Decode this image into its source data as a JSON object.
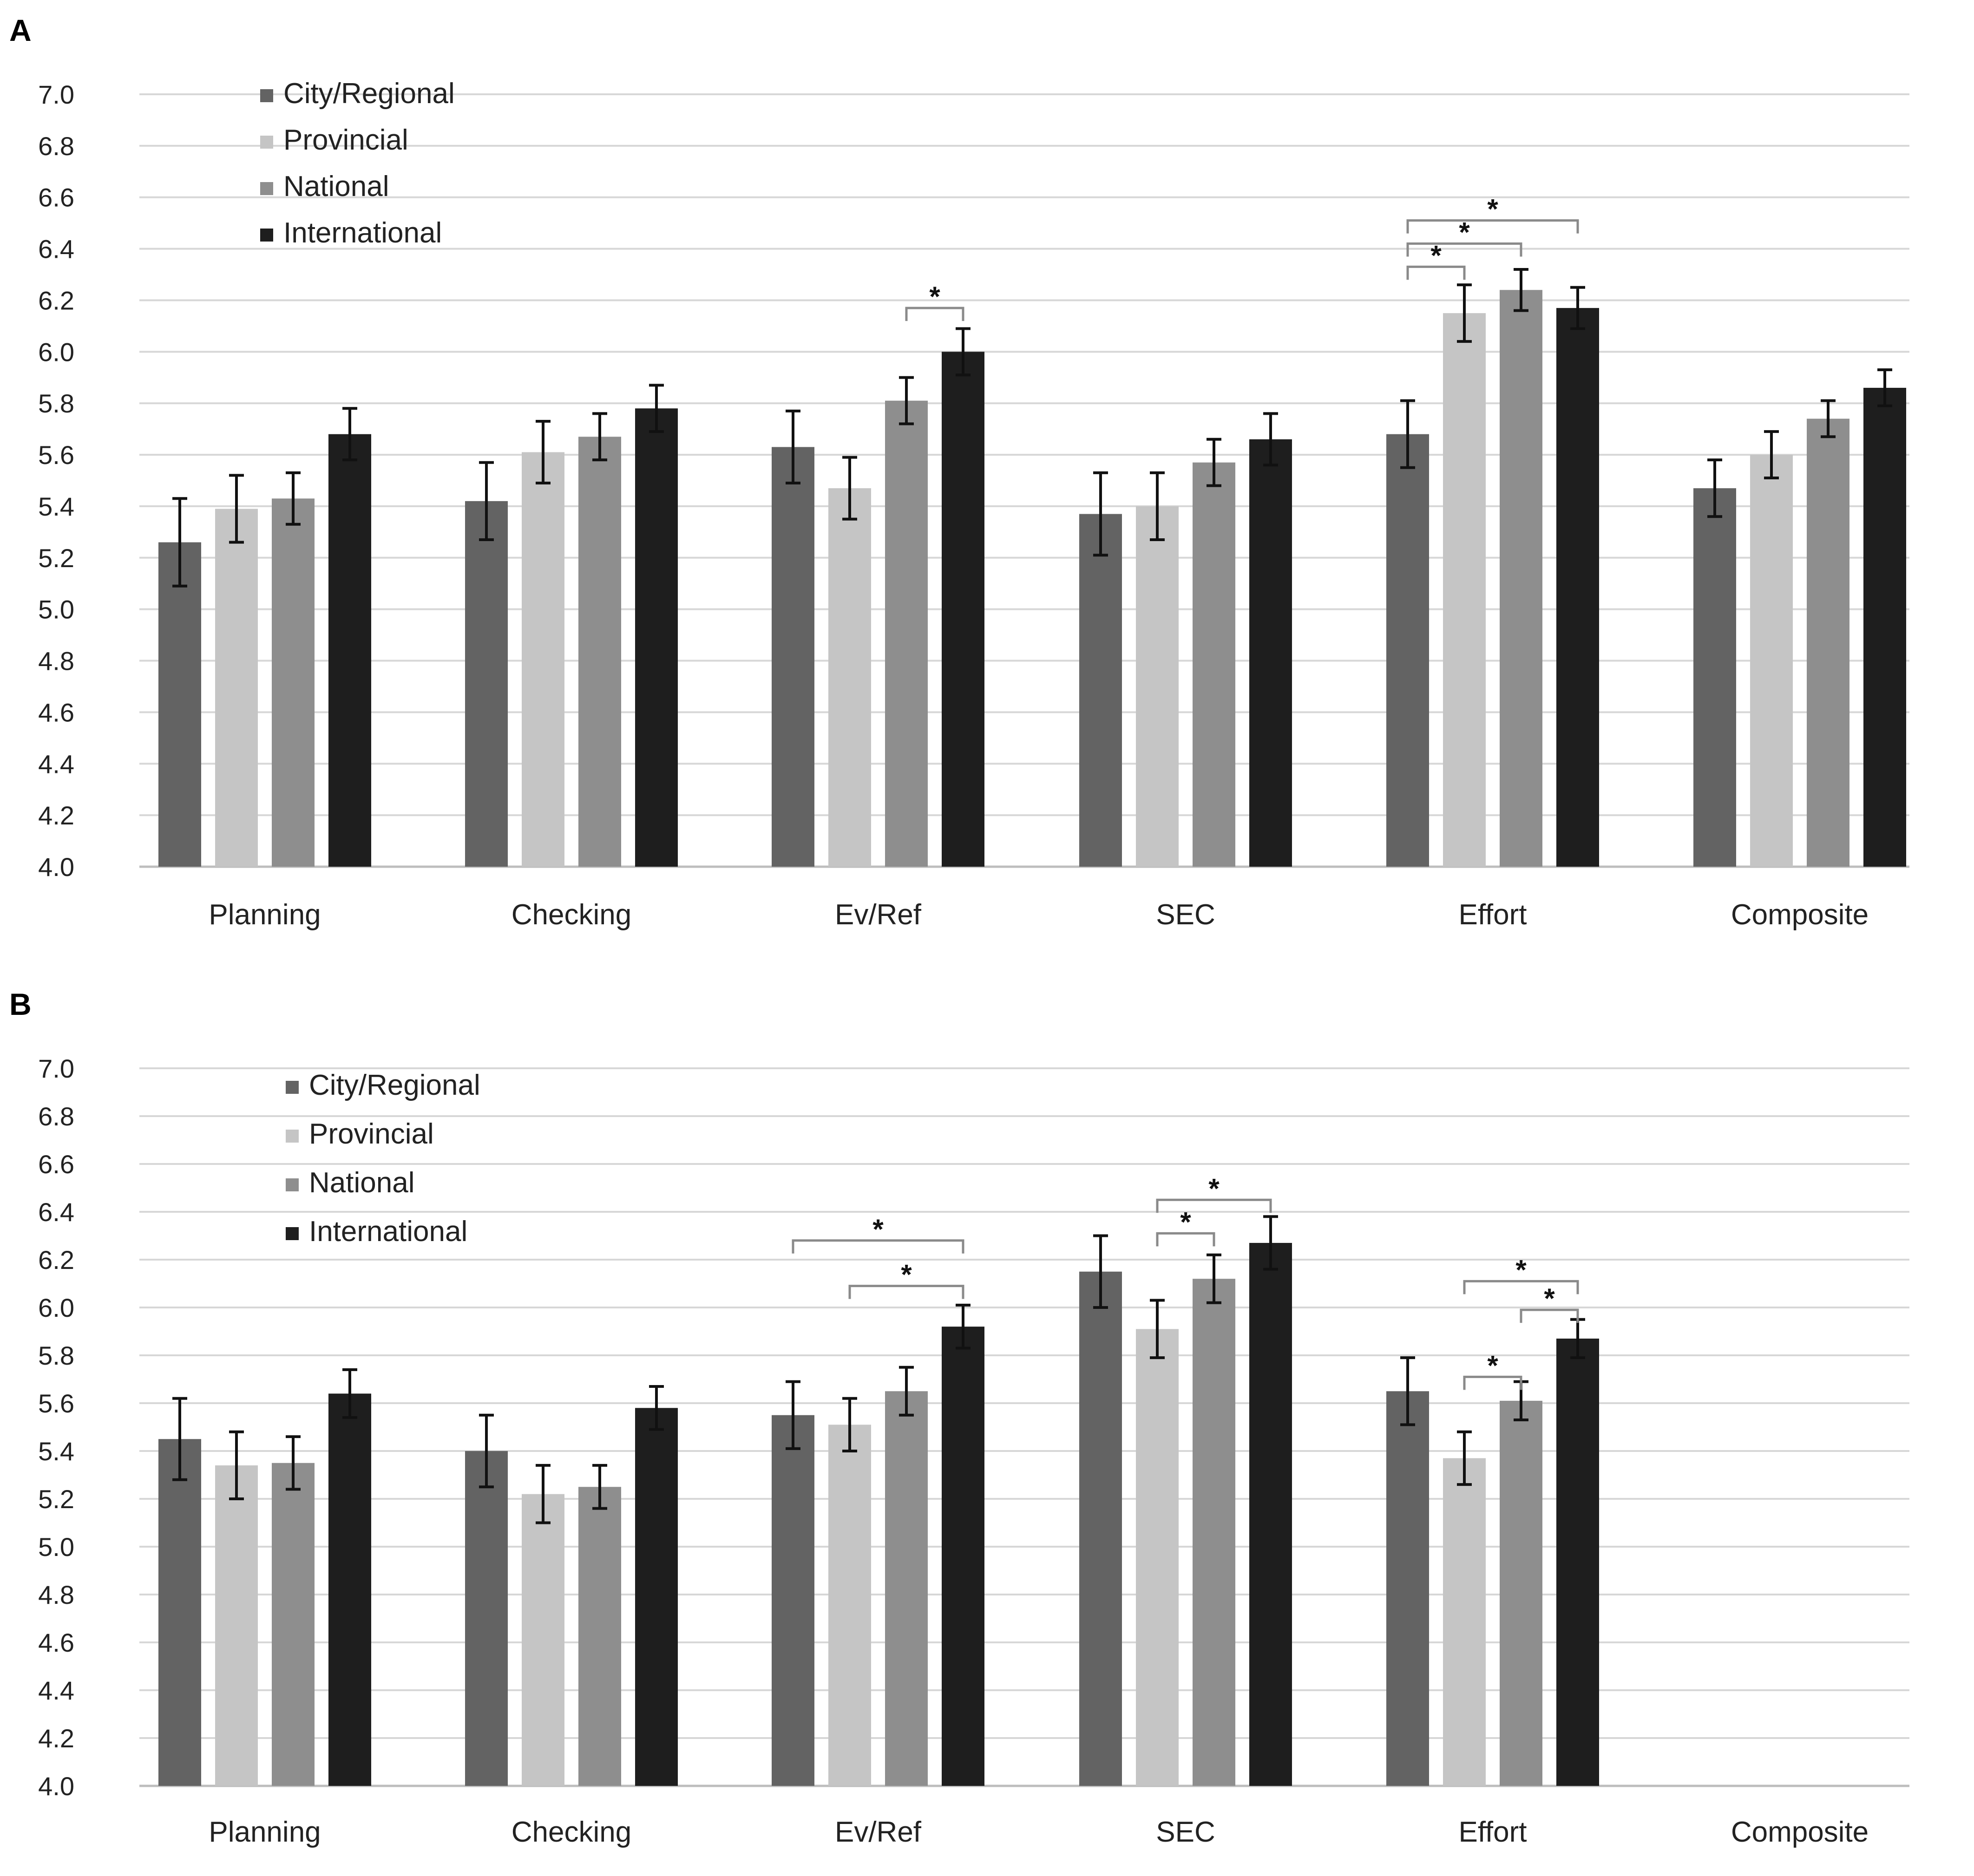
{
  "figure": {
    "colors": {
      "city": "#636363",
      "provincial": "#c5c5c5",
      "national": "#8e8e8e",
      "international": "#1e1e1e",
      "grid": "#d7d7d7",
      "axis": "#bdbdbd",
      "text": "#222222",
      "errorbar": "#111111"
    }
  },
  "chart_data": [
    {
      "panel_label": "A",
      "type": "bar",
      "categories": [
        "Planning",
        "Checking",
        "Ev/Ref",
        "SEC",
        "Effort",
        "Composite"
      ],
      "ylim": [
        4.0,
        7.0
      ],
      "yticks": [
        "4.0",
        "4.2",
        "4.4",
        "4.6",
        "4.8",
        "5.0",
        "5.2",
        "5.4",
        "5.6",
        "5.8",
        "6.0",
        "6.2",
        "6.4",
        "6.6",
        "6.8",
        "7.0"
      ],
      "legend": {
        "position": "top-left"
      },
      "grid": true,
      "series": [
        {
          "name": "City/Regional",
          "color_key": "city",
          "values": [
            5.26,
            5.42,
            5.63,
            5.37,
            5.68,
            5.47
          ],
          "errors": [
            0.17,
            0.15,
            0.14,
            0.16,
            0.13,
            0.11
          ]
        },
        {
          "name": "Provincial",
          "color_key": "provincial",
          "values": [
            5.39,
            5.61,
            5.47,
            5.4,
            6.15,
            5.6
          ],
          "errors": [
            0.13,
            0.12,
            0.12,
            0.13,
            0.11,
            0.09
          ]
        },
        {
          "name": "National",
          "color_key": "national",
          "values": [
            5.43,
            5.67,
            5.81,
            5.57,
            6.24,
            5.74
          ],
          "errors": [
            0.1,
            0.09,
            0.09,
            0.09,
            0.08,
            0.07
          ]
        },
        {
          "name": "International",
          "color_key": "international",
          "values": [
            5.68,
            5.78,
            6.0,
            5.66,
            6.17,
            5.86
          ],
          "errors": [
            0.1,
            0.09,
            0.09,
            0.1,
            0.08,
            0.07
          ]
        }
      ],
      "significance": [
        {
          "category": 2,
          "from": 2,
          "to": 3,
          "y": 6.17,
          "label": "*"
        },
        {
          "category": 4,
          "from": 0,
          "to": 1,
          "y": 6.33,
          "label": "*"
        },
        {
          "category": 4,
          "from": 0,
          "to": 2,
          "y": 6.42,
          "label": "*"
        },
        {
          "category": 4,
          "from": 0,
          "to": 3,
          "y": 6.51,
          "label": "*"
        }
      ]
    },
    {
      "panel_label": "B",
      "type": "bar",
      "categories": [
        "Planning",
        "Checking",
        "Ev/Ref",
        "SEC",
        "Effort",
        "Composite"
      ],
      "ylim": [
        4.0,
        7.0
      ],
      "yticks": [
        "4.0",
        "4.2",
        "4.4",
        "4.6",
        "4.8",
        "5.0",
        "5.2",
        "5.4",
        "5.6",
        "5.8",
        "6.0",
        "6.2",
        "6.4",
        "6.6",
        "6.8",
        "7.0"
      ],
      "legend": {
        "position": "top-left"
      },
      "grid": true,
      "series": [
        {
          "name": "City/Regional",
          "color_key": "city",
          "values": [
            5.45,
            5.4,
            5.55,
            6.15,
            5.65,
            null
          ],
          "errors": [
            0.17,
            0.15,
            0.14,
            0.15,
            0.14,
            null
          ]
        },
        {
          "name": "Provincial",
          "color_key": "provincial",
          "values": [
            5.34,
            5.22,
            5.51,
            5.91,
            5.37,
            null
          ],
          "errors": [
            0.14,
            0.12,
            0.11,
            0.12,
            0.11,
            null
          ]
        },
        {
          "name": "National",
          "color_key": "national",
          "values": [
            5.35,
            5.25,
            5.65,
            6.12,
            5.61,
            null
          ],
          "errors": [
            0.11,
            0.09,
            0.1,
            0.1,
            0.08,
            null
          ]
        },
        {
          "name": "International",
          "color_key": "international",
          "values": [
            5.64,
            5.58,
            5.92,
            6.27,
            5.87,
            null
          ],
          "errors": [
            0.1,
            0.09,
            0.09,
            0.11,
            0.08,
            null
          ]
        }
      ],
      "significance": [
        {
          "category": 2,
          "from": 1,
          "to": 3,
          "y": 6.09,
          "label": "*"
        },
        {
          "category": 2,
          "from": 0,
          "to": 3,
          "y": 6.28,
          "label": "*"
        },
        {
          "category": 3,
          "from": 1,
          "to": 2,
          "y": 6.31,
          "label": "*"
        },
        {
          "category": 3,
          "from": 1,
          "to": 3,
          "y": 6.45,
          "label": "*"
        },
        {
          "category": 4,
          "from": 1,
          "to": 2,
          "y": 5.71,
          "label": "*"
        },
        {
          "category": 4,
          "from": 2,
          "to": 3,
          "y": 5.99,
          "label": "*"
        },
        {
          "category": 4,
          "from": 1,
          "to": 3,
          "y": 6.11,
          "label": "*"
        }
      ]
    }
  ]
}
